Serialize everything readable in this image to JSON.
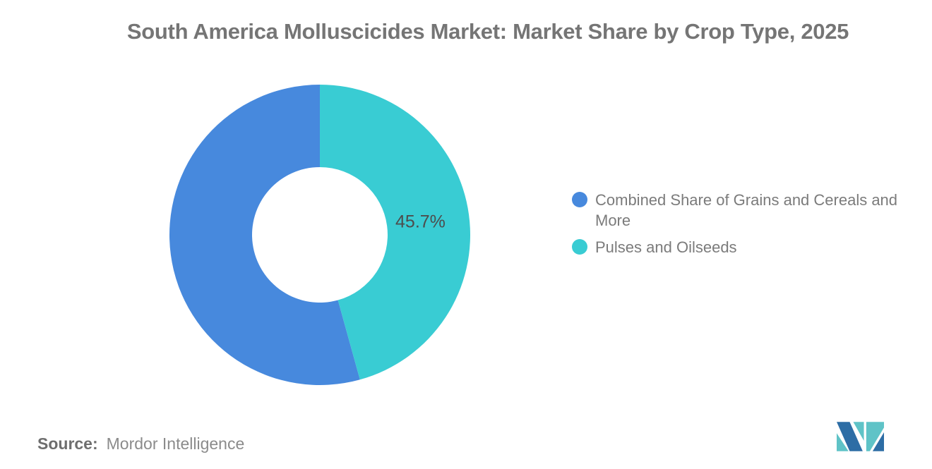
{
  "chart_data": {
    "type": "pie",
    "subtype": "donut",
    "title": "South America Molluscicides Market: Market Share by Crop Type, 2025",
    "inner_radius_ratio": 0.45,
    "start_angle": "top",
    "direction": "counterclockwise",
    "legend_position": "right",
    "unit": "%",
    "label_color": "#4D4D4D",
    "segments": [
      {
        "label": "Combined Share of Grains and Cereals and More",
        "value": 54.3,
        "color": "#4789DD",
        "data_label": ""
      },
      {
        "label": "Pulses and Oilseeds",
        "value": 45.7,
        "color": "#39CCD3",
        "data_label": "45.7%"
      }
    ]
  },
  "footer": {
    "source_label": "Source:",
    "source_value": "Mordor Intelligence"
  },
  "logo": {
    "name": "mordor-intelligence-logo",
    "blue": "#2D6DA5",
    "teal": "#5FC3C7"
  },
  "colors": {
    "background": "#FFFFFF",
    "title_text": "#757575",
    "legend_text": "#7B7B7B",
    "source_text": "#6E6E6E"
  }
}
